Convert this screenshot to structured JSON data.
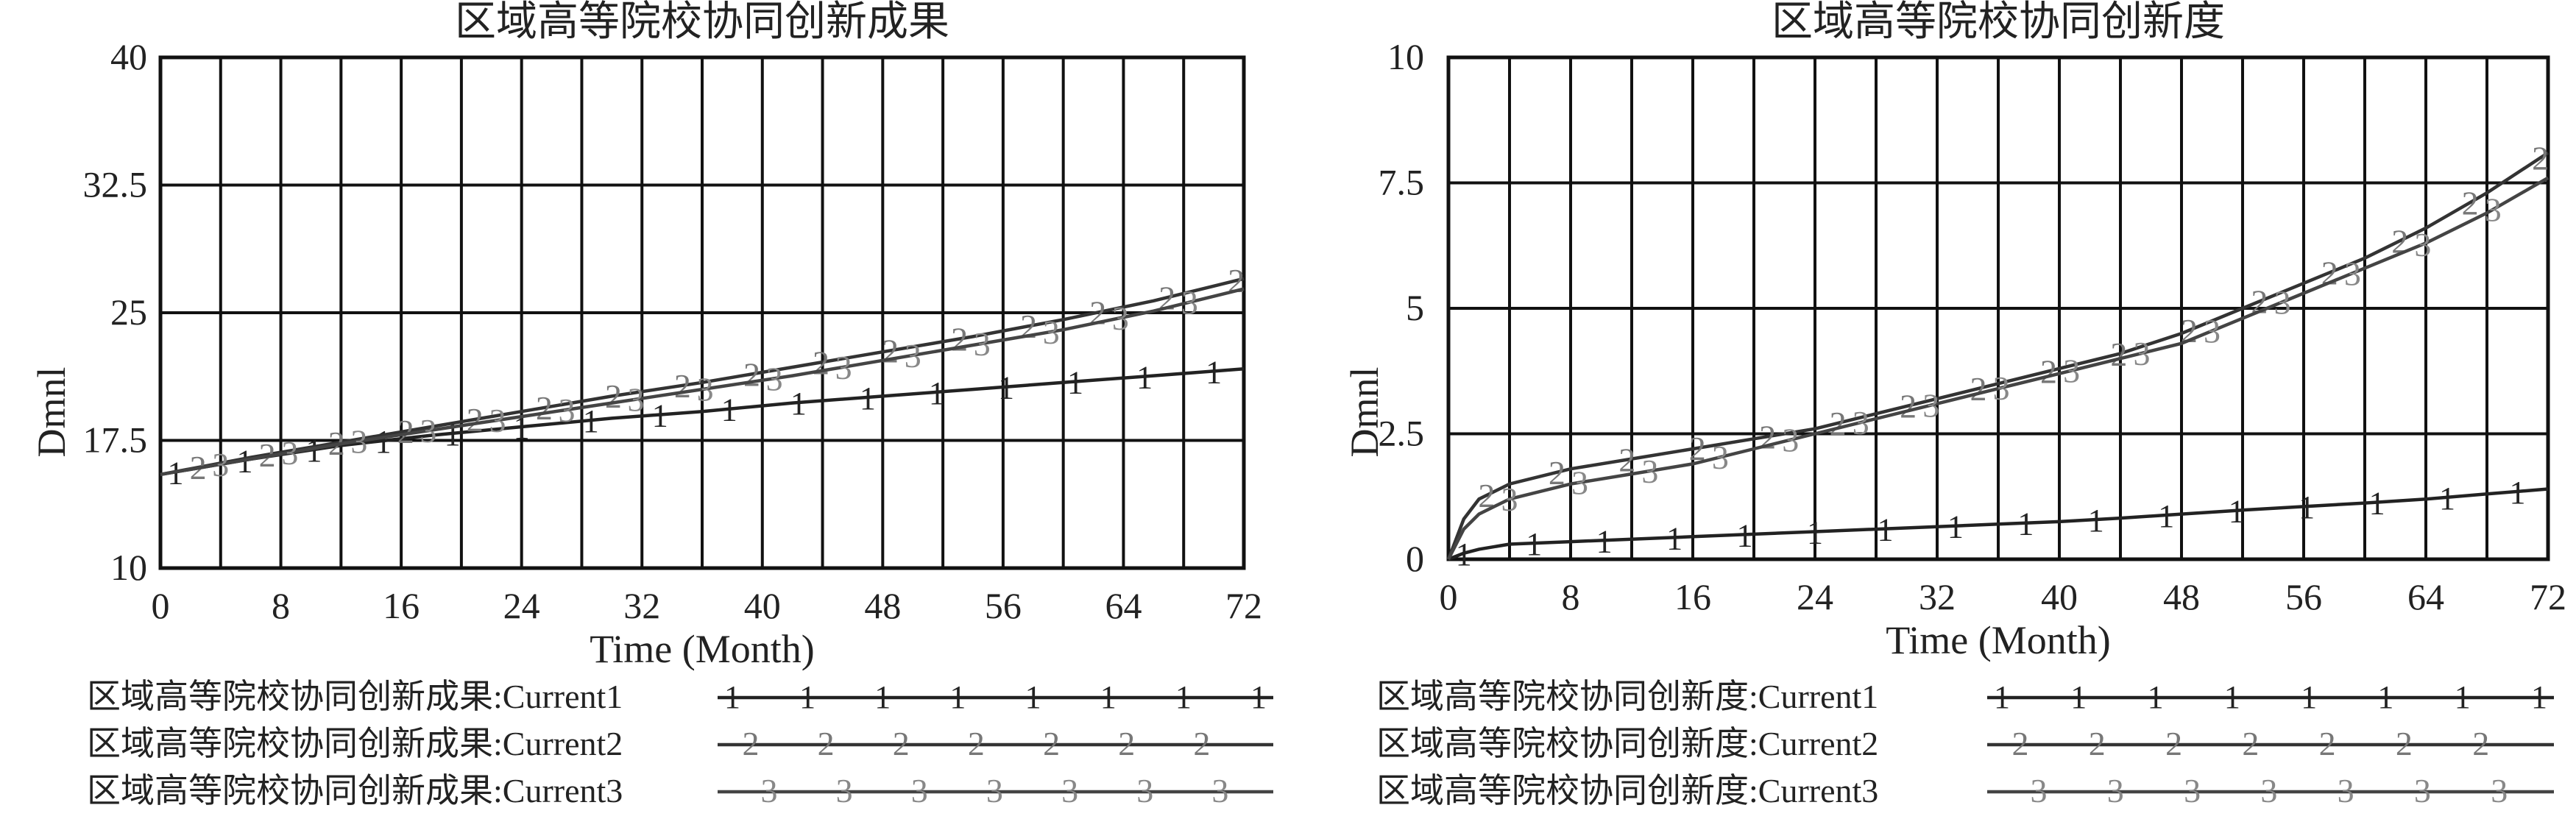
{
  "chart_data": [
    {
      "type": "line",
      "title": "区域高等院校协同创新成果",
      "xlabel": "Time (Month)",
      "ylabel": "Dmnl",
      "xlim": [
        0,
        72
      ],
      "ylim": [
        10,
        40
      ],
      "x_ticks": [
        "0",
        "8",
        "16",
        "24",
        "32",
        "40",
        "48",
        "56",
        "64",
        "72"
      ],
      "y_ticks": [
        "10",
        "17.5",
        "25",
        "32.5",
        "40"
      ],
      "grid": true,
      "x": [
        0,
        6,
        12,
        18,
        24,
        30,
        36,
        42,
        48,
        54,
        60,
        66,
        72
      ],
      "series": [
        {
          "marker": "1",
          "name": "区域高等院校协同创新成果:Current1",
          "values": [
            15.5,
            16.4,
            17.2,
            17.8,
            18.3,
            18.8,
            19.2,
            19.7,
            20.1,
            20.5,
            20.9,
            21.3,
            21.7
          ]
        },
        {
          "marker": "2",
          "name": "区域高等院校协同创新成果:Current2",
          "values": [
            15.5,
            16.5,
            17.4,
            18.3,
            19.2,
            20.1,
            20.9,
            21.8,
            22.7,
            23.6,
            24.6,
            25.7,
            27.0
          ]
        },
        {
          "marker": "3",
          "name": "区域高等院校协同创新成果:Current3",
          "values": [
            15.5,
            16.4,
            17.3,
            18.1,
            18.9,
            19.7,
            20.5,
            21.3,
            22.2,
            23.1,
            24.0,
            25.1,
            26.4
          ]
        }
      ]
    },
    {
      "type": "line",
      "title": "区域高等院校协同创新度",
      "xlabel": "Time (Month)",
      "ylabel": "Dmnl",
      "xlim": [
        0,
        72
      ],
      "ylim": [
        0,
        10
      ],
      "x_ticks": [
        "0",
        "8",
        "16",
        "24",
        "32",
        "40",
        "48",
        "56",
        "64",
        "72"
      ],
      "y_ticks": [
        "0",
        "2.5",
        "5",
        "7.5",
        "10"
      ],
      "grid": true,
      "x": [
        0,
        1,
        2,
        4,
        8,
        12,
        16,
        20,
        24,
        28,
        32,
        36,
        40,
        44,
        48,
        52,
        56,
        60,
        64,
        68,
        72
      ],
      "series": [
        {
          "marker": "1",
          "name": "区域高等院校协同创新度:Current1",
          "values": [
            0.0,
            0.12,
            0.2,
            0.3,
            0.35,
            0.4,
            0.45,
            0.5,
            0.55,
            0.6,
            0.65,
            0.7,
            0.75,
            0.82,
            0.9,
            0.98,
            1.05,
            1.12,
            1.2,
            1.3,
            1.4
          ]
        },
        {
          "marker": "2",
          "name": "区域高等院校协同创新度:Current2",
          "values": [
            0.0,
            0.8,
            1.2,
            1.5,
            1.8,
            2.0,
            2.2,
            2.4,
            2.6,
            2.9,
            3.2,
            3.5,
            3.8,
            4.1,
            4.5,
            5.0,
            5.5,
            6.0,
            6.6,
            7.3,
            8.1
          ]
        },
        {
          "marker": "3",
          "name": "区域高等院校协同创新度:Current3",
          "values": [
            0.0,
            0.6,
            0.9,
            1.2,
            1.5,
            1.7,
            1.9,
            2.2,
            2.5,
            2.8,
            3.1,
            3.4,
            3.7,
            4.0,
            4.3,
            4.8,
            5.3,
            5.8,
            6.3,
            6.9,
            7.6
          ]
        }
      ]
    }
  ]
}
